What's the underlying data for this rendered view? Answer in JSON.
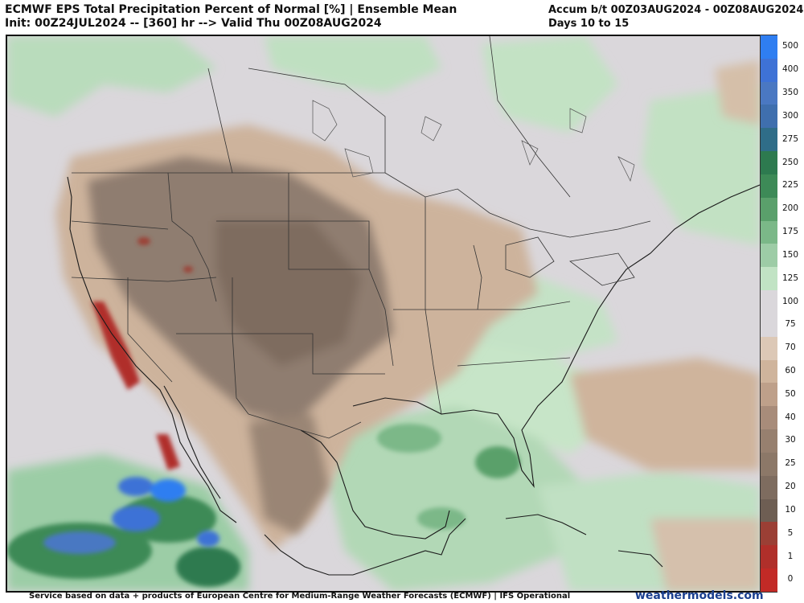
{
  "header": {
    "title_line1": "ECMWF EPS Total Precipitation Percent of Normal [%] | Ensemble Mean",
    "title_line2": "Init: 00Z24JUL2024 -- [360] hr --> Valid Thu 00Z08AUG2024",
    "accum_line1": "Accum b/t 00Z03AUG2024 - 00Z08AUG2024",
    "accum_line2": "Days 10 to 15"
  },
  "colorbar": {
    "levels": [
      {
        "label": "500",
        "color": "#2f7ef1"
      },
      {
        "label": "400",
        "color": "#3e72d6"
      },
      {
        "label": "350",
        "color": "#4a78c2"
      },
      {
        "label": "300",
        "color": "#3f6fae"
      },
      {
        "label": "275",
        "color": "#2f6d88"
      },
      {
        "label": "250",
        "color": "#2d7a4f"
      },
      {
        "label": "225",
        "color": "#3d8a57"
      },
      {
        "label": "200",
        "color": "#5aa06b"
      },
      {
        "label": "175",
        "color": "#7bb888"
      },
      {
        "label": "150",
        "color": "#9dcca6"
      },
      {
        "label": "125",
        "color": "#c1e3c4"
      },
      {
        "label": "100",
        "color": "#dad7db"
      },
      {
        "label": "75",
        "color": "#dad7db"
      },
      {
        "label": "70",
        "color": "#dcc8b6"
      },
      {
        "label": "60",
        "color": "#cfb49c"
      },
      {
        "label": "50",
        "color": "#bea08a"
      },
      {
        "label": "40",
        "color": "#a88c7a"
      },
      {
        "label": "30",
        "color": "#97806f"
      },
      {
        "label": "25",
        "color": "#8c7868"
      },
      {
        "label": "20",
        "color": "#7e6c5f"
      },
      {
        "label": "10",
        "color": "#6e5e53"
      },
      {
        "label": "5",
        "color": "#9b3f35"
      },
      {
        "label": "1",
        "color": "#b02f2a"
      },
      {
        "label": "0",
        "color": "#c22a26"
      }
    ]
  },
  "footer": {
    "credit": "Service based on data + products of European Centre for Medium-Range Weather Forecasts (ECMWF) | IFS Operational",
    "site": "weathermodels.com"
  }
}
